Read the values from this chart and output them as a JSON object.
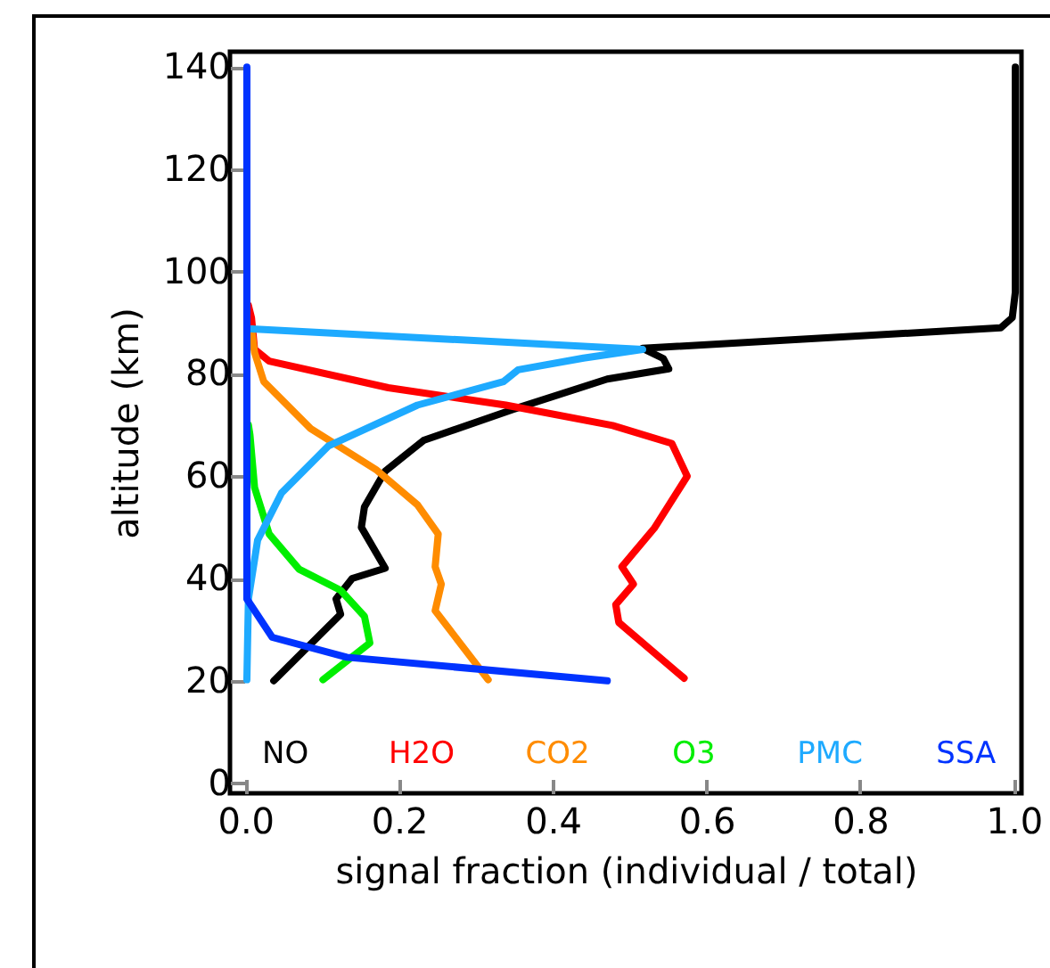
{
  "chart_data": {
    "type": "line",
    "xlabel": "signal fraction (individual / total)",
    "ylabel": "altitude (km)",
    "xlim": [
      -0.02,
      1.01
    ],
    "ylim": [
      -2,
      143
    ],
    "xticks": [
      {
        "value": 0,
        "label": "0.0"
      },
      {
        "value": 0.2,
        "label": "0.2"
      },
      {
        "value": 0.4,
        "label": "0.4"
      },
      {
        "value": 0.6,
        "label": "0.6"
      },
      {
        "value": 0.8,
        "label": "0.8"
      },
      {
        "value": 1,
        "label": "1.0"
      }
    ],
    "yticks": [
      0,
      20,
      40,
      60,
      80,
      100,
      120,
      140
    ],
    "legend": "bottom",
    "line_style": "solid",
    "grid": false,
    "series": [
      {
        "name": "NO",
        "color": "#000000",
        "x": [
          0.037,
          0.124,
          0.118,
          0.139,
          0.182,
          0.151,
          0.155,
          0.182,
          0.232,
          0.347,
          0.471,
          0.551,
          0.544,
          0.517,
          0.983,
          0.998,
          1.002,
          1.002
        ],
        "values": [
          20,
          33,
          36,
          40,
          42,
          50,
          54,
          61,
          67,
          73,
          79,
          81,
          83,
          85,
          89,
          91,
          96,
          140
        ]
      },
      {
        "name": "H2O",
        "color": "#ff0000",
        "x": [
          0.571,
          0.486,
          0.482,
          0.505,
          0.49,
          0.532,
          0.575,
          0.555,
          0.478,
          0.339,
          0.186,
          0.031,
          0.012,
          0.008,
          0.004
        ],
        "values": [
          20.5,
          31.4,
          34.9,
          38.9,
          42.3,
          49.8,
          60,
          66.4,
          69.9,
          73.9,
          77.3,
          82.5,
          84.8,
          91,
          93.4
        ]
      },
      {
        "name": "CO2",
        "color": "#ff8c00",
        "x": [
          0.316,
          0.247,
          0.255,
          0.247,
          0.251,
          0.224,
          0.17,
          0.085,
          0.024,
          0.012,
          0.008
        ],
        "values": [
          20.2,
          33.7,
          38.9,
          42.3,
          48.7,
          54.4,
          61.3,
          69.3,
          78.5,
          84.2,
          88.8
        ]
      },
      {
        "name": "O3",
        "color": "#00ee00",
        "x": [
          0.101,
          0.162,
          0.155,
          0.124,
          0.07,
          0.031,
          0.012,
          0.006,
          0.004
        ],
        "values": [
          20.2,
          27.4,
          32.6,
          37.7,
          41.8,
          48.7,
          57.8,
          68.1,
          70
        ]
      },
      {
        "name": "PMC",
        "color": "#1eaaff",
        "x": [
          0.002,
          0.004,
          0.016,
          0.047,
          0.108,
          0.224,
          0.336,
          0.355,
          0.44,
          0.517,
          0.008
        ],
        "values": [
          20.2,
          36,
          47.5,
          56.7,
          65.9,
          73.9,
          78.5,
          80.8,
          83.1,
          84.8,
          88.8
        ]
      },
      {
        "name": "SSA",
        "color": "#0033ff",
        "x": [
          0.471,
          0.132,
          0.035,
          0.002,
          0.002
        ],
        "values": [
          20,
          24.6,
          28.5,
          36,
          140
        ]
      }
    ]
  }
}
